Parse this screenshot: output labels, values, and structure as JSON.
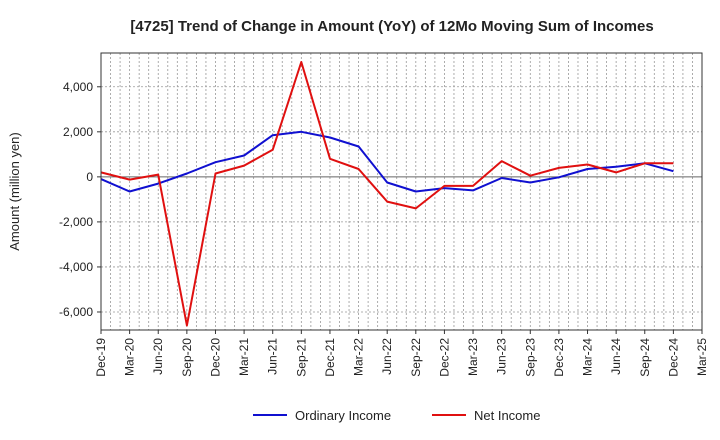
{
  "chart_data": {
    "type": "line",
    "title": "[4725]  Trend of Change in Amount (YoY) of 12Mo Moving Sum of Incomes",
    "xlabel": "",
    "ylabel": "Amount (million yen)",
    "ylim": [
      -6800,
      5500
    ],
    "y_ticks": [
      -6000,
      -4000,
      -2000,
      0,
      2000,
      4000
    ],
    "y_tick_labels": [
      "-6,000",
      "-4,000",
      "-2,000",
      "0",
      "2,000",
      "4,000"
    ],
    "x_tick_labels": [
      "Dec-19",
      "Mar-20",
      "Jun-20",
      "Sep-20",
      "Dec-20",
      "Mar-21",
      "Jun-21",
      "Sep-21",
      "Dec-21",
      "Mar-22",
      "Jun-22",
      "Sep-22",
      "Dec-22",
      "Mar-23",
      "Jun-23",
      "Sep-23",
      "Dec-23",
      "Mar-24",
      "Jun-24",
      "Sep-24",
      "Dec-24",
      "Mar-25"
    ],
    "grid": true,
    "legend_position": "bottom-center",
    "series": [
      {
        "name": "Ordinary Income",
        "color": "#1010d0",
        "values": [
          -100,
          -650,
          -300,
          150,
          650,
          950,
          1850,
          2000,
          1750,
          1350,
          -250,
          -650,
          -500,
          -600,
          -50,
          -250,
          -20,
          350,
          450,
          600,
          250
        ]
      },
      {
        "name": "Net Income",
        "color": "#e01010",
        "values": [
          200,
          -120,
          100,
          -6600,
          150,
          500,
          1200,
          5100,
          800,
          350,
          -1100,
          -1400,
          -400,
          -400,
          700,
          50,
          400,
          550,
          200,
          600,
          600
        ]
      }
    ]
  }
}
